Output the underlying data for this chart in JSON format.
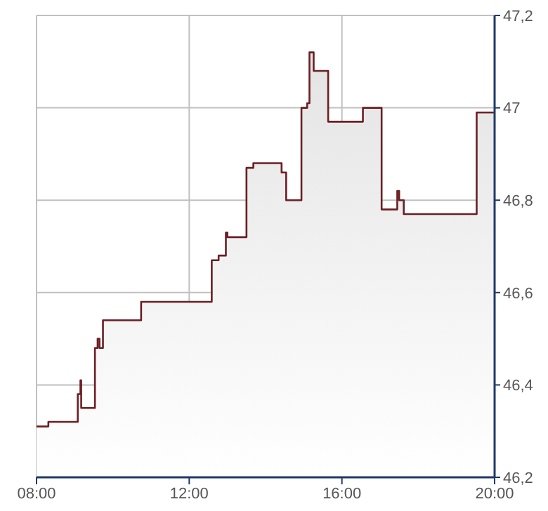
{
  "chart_data": {
    "type": "area",
    "x": [
      8,
      8.31,
      8.31,
      9.08,
      9.08,
      9.15,
      9.15,
      9.17,
      9.17,
      9.53,
      9.53,
      9.6,
      9.6,
      9.65,
      9.65,
      9.74,
      9.74,
      10.74,
      10.74,
      12.59,
      12.59,
      12.77,
      12.77,
      12.96,
      12.96,
      13.0,
      13.0,
      13.5,
      13.5,
      13.68,
      13.68,
      14.42,
      14.42,
      14.54,
      14.54,
      14.94,
      14.94,
      15.09,
      15.09,
      15.15,
      15.15,
      15.26,
      15.26,
      15.64,
      15.64,
      16.55,
      16.55,
      17.04,
      17.04,
      17.45,
      17.45,
      17.5,
      17.5,
      17.62,
      17.62,
      19.53,
      19.53,
      20
    ],
    "series": [
      {
        "color": "#6b1f24",
        "values": [
          46.31,
          46.31,
          46.32,
          46.32,
          46.38,
          46.38,
          46.41,
          46.41,
          46.35,
          46.35,
          46.48,
          46.48,
          46.5,
          46.5,
          46.48,
          46.48,
          46.54,
          46.54,
          46.58,
          46.58,
          46.67,
          46.67,
          46.68,
          46.68,
          46.73,
          46.73,
          46.72,
          46.72,
          46.87,
          46.87,
          46.88,
          46.88,
          46.86,
          46.86,
          46.8,
          46.8,
          47.0,
          47.0,
          47.01,
          47.01,
          47.12,
          47.12,
          47.08,
          47.08,
          46.97,
          46.97,
          47.0,
          47.0,
          46.78,
          46.78,
          46.82,
          46.82,
          46.8,
          46.8,
          46.77,
          46.77,
          46.99,
          46.99
        ]
      }
    ],
    "xlim": [
      8,
      20
    ],
    "xticks": [
      {
        "value": 8,
        "label": "08:00"
      },
      {
        "value": 12,
        "label": "12:00"
      },
      {
        "value": 16,
        "label": "16:00"
      },
      {
        "value": 20,
        "label": "20:00"
      }
    ],
    "ylim": [
      46.2,
      47.2
    ],
    "yticks": [
      {
        "value": 46.2,
        "label": "46,2"
      },
      {
        "value": 46.4,
        "label": "46,4"
      },
      {
        "value": 46.6,
        "label": "46,6"
      },
      {
        "value": 46.8,
        "label": "46,8"
      },
      {
        "value": 47,
        "label": "47"
      },
      {
        "value": 47.2,
        "label": "47,2"
      }
    ],
    "grid": true,
    "legend": false,
    "marker": "none",
    "line_style": "solid"
  }
}
